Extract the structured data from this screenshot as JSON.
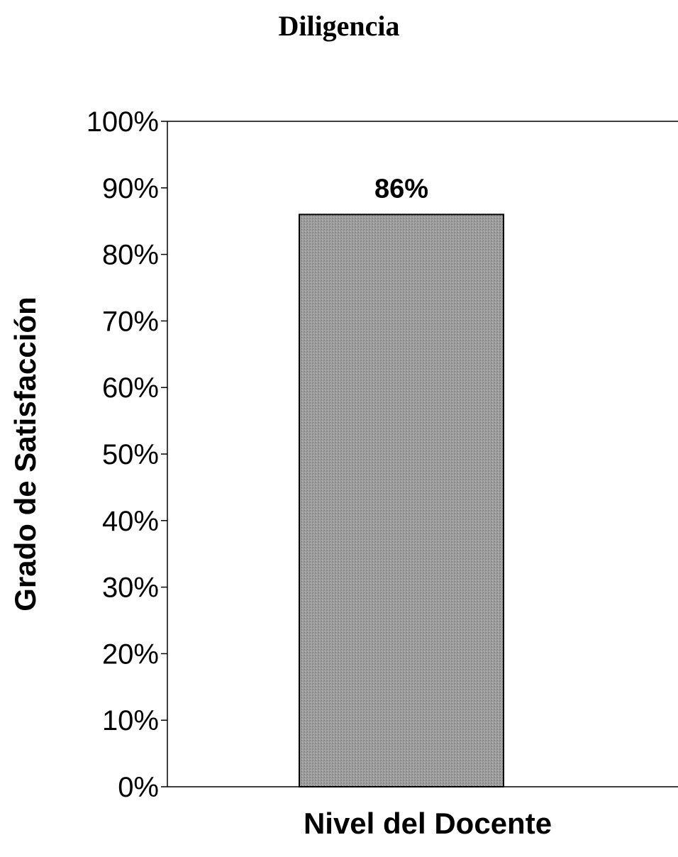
{
  "chart_data": {
    "type": "bar",
    "title": "Diligencia",
    "xlabel": "Nivel del Docente",
    "ylabel": "Grado de Satisfacción",
    "categories": [
      ""
    ],
    "values": [
      86
    ],
    "data_labels": [
      "86%"
    ],
    "ylim": [
      0,
      100
    ],
    "yticks": [
      0,
      10,
      20,
      30,
      40,
      50,
      60,
      70,
      80,
      90,
      100
    ],
    "ytick_labels": [
      "0%",
      "10%",
      "20%",
      "30%",
      "40%",
      "50%",
      "60%",
      "70%",
      "80%",
      "90%",
      "100%"
    ],
    "grid": false,
    "legend": "none",
    "bar_color": "#9a9a9a",
    "bar_edge_color": "#000000"
  }
}
